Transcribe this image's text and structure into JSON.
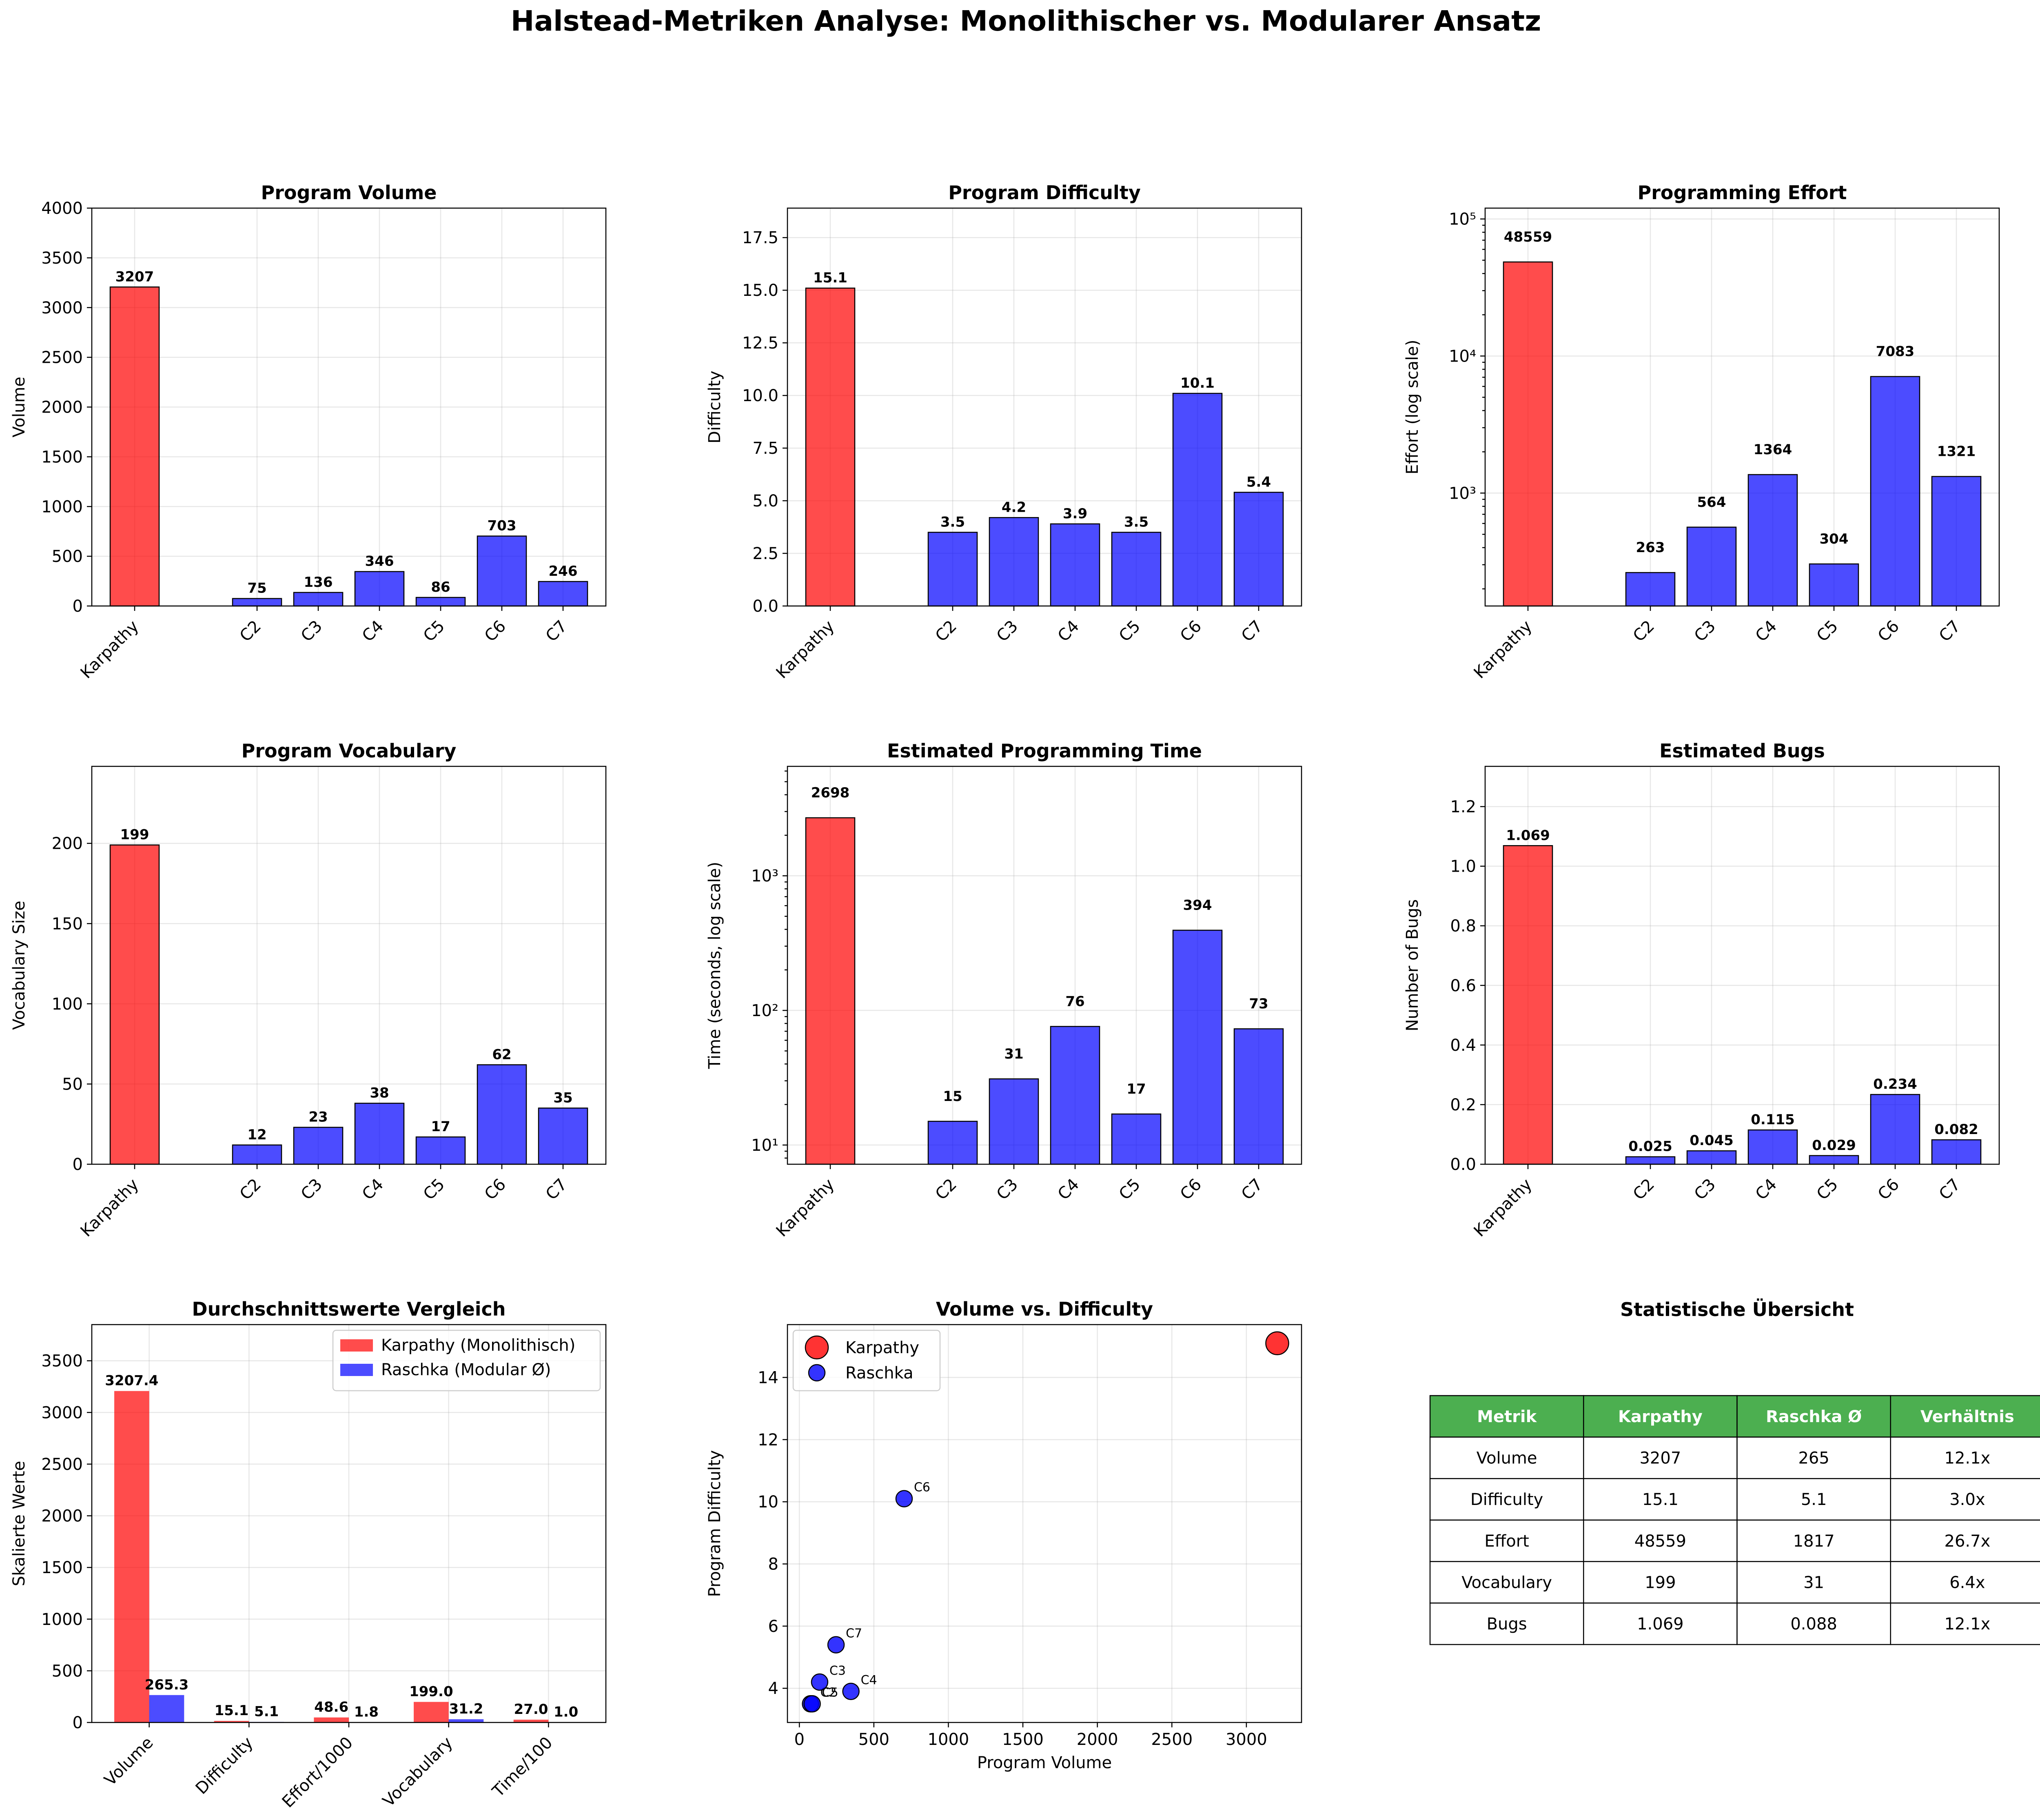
{
  "figure": {
    "suptitle": "Halstead-Metriken Analyse: Monolithischer vs. Modularer Ansatz"
  },
  "colors": {
    "karpathy": "#ff0000",
    "raschka": "#0000ff",
    "table_header": "#4caf50"
  },
  "chart_data": [
    {
      "type": "bar",
      "title": "Program Volume",
      "xlabel": "",
      "ylabel": "Volume",
      "categories": [
        "Karpathy",
        "C2",
        "C3",
        "C4",
        "C5",
        "C6",
        "C7"
      ],
      "values": [
        3207,
        75,
        136,
        346,
        86,
        703,
        246
      ],
      "value_labels": [
        "3207",
        "75",
        "136",
        "346",
        "86",
        "703",
        "246"
      ],
      "bar_colors": [
        "karpathy",
        "raschka",
        "raschka",
        "raschka",
        "raschka",
        "raschka",
        "raschka"
      ],
      "ylim": [
        0,
        4000
      ],
      "yticks": [
        0,
        500,
        1000,
        1500,
        2000,
        2500,
        3000,
        3500,
        4000
      ],
      "ytick_labels": [
        "0",
        "500",
        "1000",
        "1500",
        "2000",
        "2500",
        "3000",
        "3500",
        "4000"
      ],
      "grid": true
    },
    {
      "type": "bar",
      "title": "Program Difficulty",
      "xlabel": "",
      "ylabel": "Difficulty",
      "categories": [
        "Karpathy",
        "C2",
        "C3",
        "C4",
        "C5",
        "C6",
        "C7"
      ],
      "values": [
        15.1,
        3.5,
        4.2,
        3.9,
        3.5,
        10.1,
        5.4
      ],
      "value_labels": [
        "15.1",
        "3.5",
        "4.2",
        "3.9",
        "3.5",
        "10.1",
        "5.4"
      ],
      "bar_colors": [
        "karpathy",
        "raschka",
        "raschka",
        "raschka",
        "raschka",
        "raschka",
        "raschka"
      ],
      "ylim": [
        0,
        18.9
      ],
      "yticks": [
        0,
        2.5,
        5,
        7.5,
        10,
        12.5,
        15,
        17.5
      ],
      "ytick_labels": [
        "0.0",
        "2.5",
        "5.0",
        "7.5",
        "10.0",
        "12.5",
        "15.0",
        "17.5"
      ],
      "grid": true
    },
    {
      "type": "bar",
      "title": "Programming Effort",
      "xlabel": "",
      "ylabel": "Effort (log scale)",
      "yscale": "log",
      "categories": [
        "Karpathy",
        "C2",
        "C3",
        "C4",
        "C5",
        "C6",
        "C7"
      ],
      "values": [
        48559,
        263,
        564,
        1364,
        304,
        7083,
        1321
      ],
      "value_labels": [
        "48559",
        "263",
        "564",
        "1364",
        "304",
        "7083",
        "1321"
      ],
      "bar_colors": [
        "karpathy",
        "raschka",
        "raschka",
        "raschka",
        "raschka",
        "raschka",
        "raschka"
      ],
      "ylim": [
        150,
        120000
      ],
      "yticks": [
        1000,
        10000,
        100000
      ],
      "ytick_labels": [
        "10³",
        "10⁴",
        "10⁵"
      ],
      "grid": true
    },
    {
      "type": "bar",
      "title": "Program Vocabulary",
      "xlabel": "",
      "ylabel": "Vocabulary Size",
      "categories": [
        "Karpathy",
        "C2",
        "C3",
        "C4",
        "C5",
        "C6",
        "C7"
      ],
      "values": [
        199,
        12,
        23,
        38,
        17,
        62,
        35
      ],
      "value_labels": [
        "199",
        "12",
        "23",
        "38",
        "17",
        "62",
        "35"
      ],
      "bar_colors": [
        "karpathy",
        "raschka",
        "raschka",
        "raschka",
        "raschka",
        "raschka",
        "raschka"
      ],
      "ylim": [
        0,
        248
      ],
      "yticks": [
        0,
        50,
        100,
        150,
        200
      ],
      "ytick_labels": [
        "0",
        "50",
        "100",
        "150",
        "200"
      ],
      "grid": true
    },
    {
      "type": "bar",
      "title": "Estimated Programming Time",
      "xlabel": "",
      "ylabel": "Time (seconds, log scale)",
      "yscale": "log",
      "categories": [
        "Karpathy",
        "C2",
        "C3",
        "C4",
        "C5",
        "C6",
        "C7"
      ],
      "values": [
        2698,
        15,
        31,
        76,
        17,
        394,
        73
      ],
      "value_labels": [
        "2698",
        "15",
        "31",
        "76",
        "17",
        "394",
        "73"
      ],
      "bar_colors": [
        "karpathy",
        "raschka",
        "raschka",
        "raschka",
        "raschka",
        "raschka",
        "raschka"
      ],
      "ylim": [
        7.2,
        6500
      ],
      "yticks": [
        10,
        100,
        1000
      ],
      "ytick_labels": [
        "10¹",
        "10²",
        "10³"
      ],
      "grid": true
    },
    {
      "type": "bar",
      "title": "Estimated Bugs",
      "xlabel": "",
      "ylabel": "Number of Bugs",
      "categories": [
        "Karpathy",
        "C2",
        "C3",
        "C4",
        "C5",
        "C6",
        "C7"
      ],
      "values": [
        1.069,
        0.025,
        0.045,
        0.115,
        0.029,
        0.234,
        0.082
      ],
      "value_labels": [
        "1.069",
        "0.025",
        "0.045",
        "0.115",
        "0.029",
        "0.234",
        "0.082"
      ],
      "bar_colors": [
        "karpathy",
        "raschka",
        "raschka",
        "raschka",
        "raschka",
        "raschka",
        "raschka"
      ],
      "ylim": [
        0,
        1.335
      ],
      "yticks": [
        0,
        0.2,
        0.4,
        0.6,
        0.8,
        1.0,
        1.2
      ],
      "ytick_labels": [
        "0.0",
        "0.2",
        "0.4",
        "0.6",
        "0.8",
        "1.0",
        "1.2"
      ],
      "grid": true
    },
    {
      "type": "bar",
      "title": "Durchschnittswerte Vergleich",
      "xlabel": "",
      "ylabel": "Skalierte Werte",
      "categories": [
        "Volume",
        "Difficulty",
        "Effort/1000",
        "Vocabulary",
        "Time/100"
      ],
      "series": [
        {
          "name": "Karpathy (Monolithisch)",
          "color": "karpathy",
          "values": [
            3207.4,
            15.1,
            48.6,
            199.0,
            27.0
          ],
          "value_labels": [
            "3207.4",
            "15.1",
            "48.6",
            "199.0",
            "27.0"
          ]
        },
        {
          "name": "Raschka (Modular Ø)",
          "color": "raschka",
          "values": [
            265.3,
            5.1,
            1.8,
            31.2,
            1.0
          ],
          "value_labels": [
            "265.3",
            "5.1",
            "1.8",
            "31.2",
            "1.0"
          ]
        }
      ],
      "ylim": [
        0,
        3850
      ],
      "yticks": [
        0,
        500,
        1000,
        1500,
        2000,
        2500,
        3000,
        3500
      ],
      "ytick_labels": [
        "0",
        "500",
        "1000",
        "1500",
        "2000",
        "2500",
        "3000",
        "3500"
      ],
      "legend": "top-right",
      "grid": true
    },
    {
      "type": "scatter",
      "title": "Volume vs. Difficulty",
      "xlabel": "Program Volume",
      "ylabel": "Program Difficulty",
      "series": [
        {
          "name": "Karpathy",
          "color": "karpathy",
          "points": [
            {
              "x": 3207,
              "y": 15.1
            }
          ]
        },
        {
          "name": "Raschka",
          "color": "raschka",
          "points": [
            {
              "x": 75,
              "y": 3.5,
              "label": "C2"
            },
            {
              "x": 136,
              "y": 4.2,
              "label": "C3"
            },
            {
              "x": 346,
              "y": 3.9,
              "label": "C4"
            },
            {
              "x": 86,
              "y": 3.5,
              "label": "C5"
            },
            {
              "x": 703,
              "y": 10.1,
              "label": "C6"
            },
            {
              "x": 246,
              "y": 5.4,
              "label": "C7"
            }
          ]
        }
      ],
      "xlim": [
        -80,
        3370
      ],
      "ylim": [
        2.9,
        15.7
      ],
      "xticks": [
        0,
        500,
        1000,
        1500,
        2000,
        2500,
        3000
      ],
      "xtick_labels": [
        "0",
        "500",
        "1000",
        "1500",
        "2000",
        "2500",
        "3000"
      ],
      "yticks": [
        4,
        6,
        8,
        10,
        12,
        14
      ],
      "ytick_labels": [
        "4",
        "6",
        "8",
        "10",
        "12",
        "14"
      ],
      "legend": "top-left",
      "grid": true
    },
    {
      "type": "table",
      "title": "Statistische Übersicht",
      "columns": [
        "Metrik",
        "Karpathy",
        "Raschka Ø",
        "Verhältnis"
      ],
      "rows": [
        [
          "Volume",
          "3207",
          "265",
          "12.1x"
        ],
        [
          "Difficulty",
          "15.1",
          "5.1",
          "3.0x"
        ],
        [
          "Effort",
          "48559",
          "1817",
          "26.7x"
        ],
        [
          "Vocabulary",
          "199",
          "31",
          "6.4x"
        ],
        [
          "Bugs",
          "1.069",
          "0.088",
          "12.1x"
        ]
      ]
    }
  ]
}
